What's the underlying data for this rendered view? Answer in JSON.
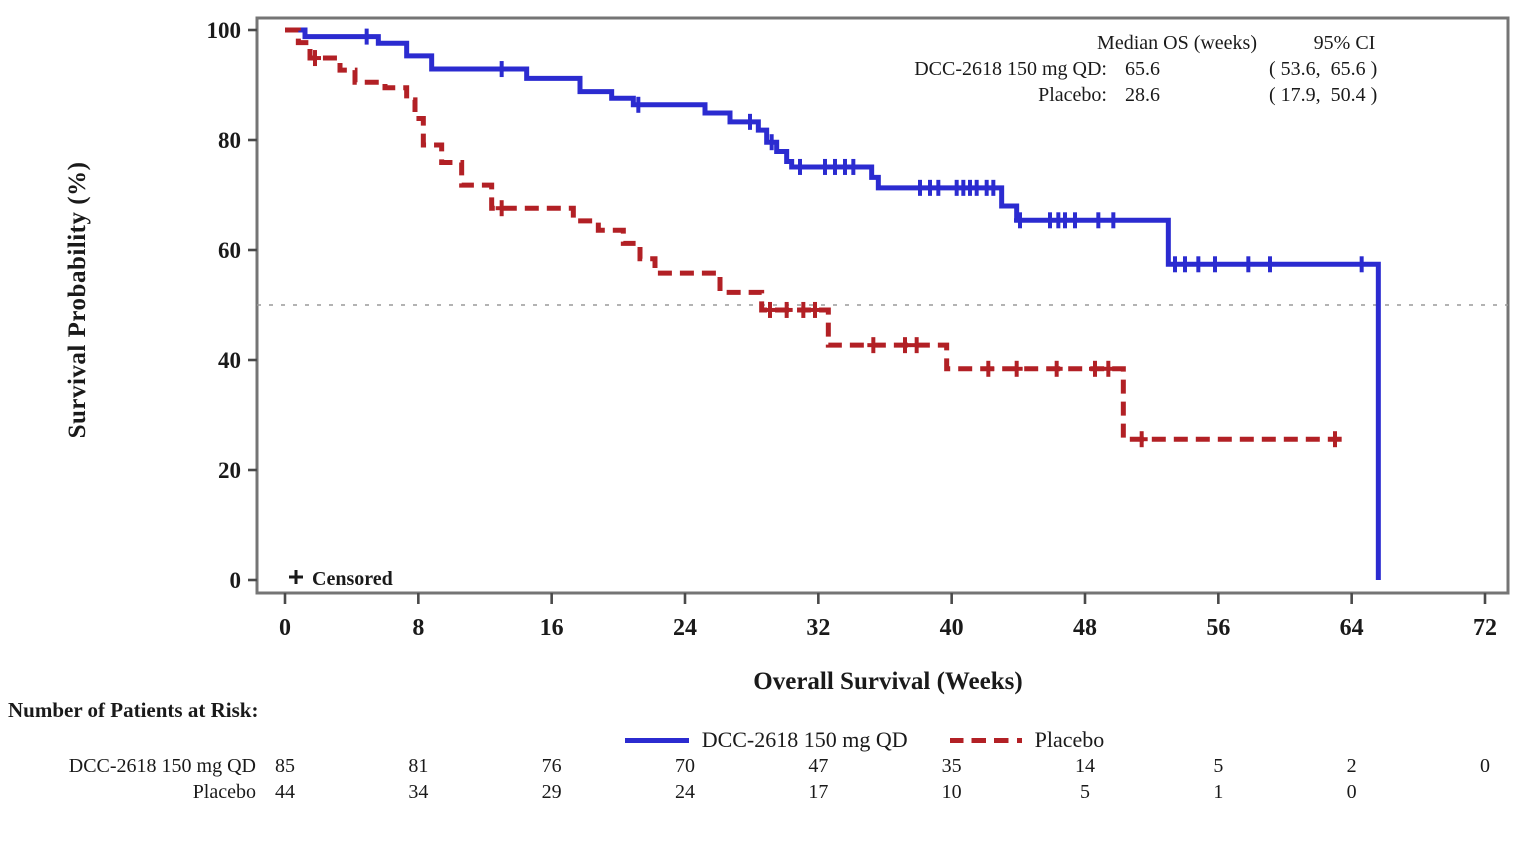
{
  "figure": {
    "y_axis_title": "Survival Probability (%)",
    "x_axis_title": "Overall Survival (Weeks)",
    "censored_note": "Censored",
    "colors": {
      "treatment": "#2b2bd0",
      "placebo": "#b22025",
      "frame": "#757575",
      "tick": "#4a4a4a",
      "reference_line": "#9a9a9a",
      "text": "#1a1a1a"
    },
    "annotation": {
      "header_left": "Median OS (weeks)",
      "header_right": "95% CI",
      "rows": [
        {
          "label": "DCC-2618 150 mg QD:",
          "median": "65.6",
          "ci": "( 53.6,  65.6 )"
        },
        {
          "label": "Placebo:",
          "median": "28.6",
          "ci": "( 17.9,  50.4 )"
        }
      ]
    },
    "legend": [
      {
        "name": "DCC-2618 150 mg QD",
        "style": "solid",
        "color": "#2b2bd0"
      },
      {
        "name": "Placebo",
        "style": "dashed",
        "color": "#b22025"
      }
    ],
    "risk_table": {
      "title": "Number of Patients at Risk:",
      "rows": [
        {
          "label": "DCC-2618 150 mg QD",
          "counts": [
            "85",
            "81",
            "76",
            "70",
            "47",
            "35",
            "14",
            "5",
            "2",
            "0"
          ]
        },
        {
          "label": "Placebo",
          "counts": [
            "44",
            "34",
            "29",
            "24",
            "17",
            "10",
            "5",
            "1",
            "0",
            ""
          ]
        }
      ]
    }
  },
  "chart_data": {
    "type": "line",
    "subtype": "kaplan-meier-step",
    "title": "",
    "xlabel": "Overall Survival (Weeks)",
    "ylabel": "Survival Probability (%)",
    "xlim": [
      0,
      72
    ],
    "ylim": [
      0,
      100
    ],
    "x_ticks": [
      0,
      8,
      16,
      24,
      32,
      40,
      48,
      56,
      64,
      72
    ],
    "y_ticks": [
      0,
      20,
      40,
      60,
      80,
      100
    ],
    "grid": false,
    "reference_line_y": 50,
    "legend_position": "bottom",
    "series": [
      {
        "name": "DCC-2618 150 mg QD",
        "color": "#2b2bd0",
        "dash": false,
        "median_weeks": 65.6,
        "ci95": [
          53.6,
          65.6
        ],
        "end_week": 65.6,
        "steps": [
          [
            0,
            100
          ],
          [
            1.2,
            98.8
          ],
          [
            5.6,
            97.6
          ],
          [
            7.3,
            95.3
          ],
          [
            8.8,
            92.9
          ],
          [
            14.5,
            91.2
          ],
          [
            17.7,
            88.8
          ],
          [
            19.6,
            87.6
          ],
          [
            20.9,
            86.4
          ],
          [
            25.2,
            84.9
          ],
          [
            26.7,
            83.3
          ],
          [
            28.4,
            81.8
          ],
          [
            28.9,
            79.6
          ],
          [
            29.5,
            77.9
          ],
          [
            30.1,
            76.1
          ],
          [
            30.4,
            75.1
          ],
          [
            35.2,
            73.2
          ],
          [
            35.6,
            71.3
          ],
          [
            43.0,
            68.0
          ],
          [
            43.9,
            65.4
          ],
          [
            53.0,
            57.4
          ],
          [
            65.6,
            0
          ]
        ],
        "censors": [
          [
            4.9,
            98.8
          ],
          [
            13.0,
            92.9
          ],
          [
            21.2,
            86.4
          ],
          [
            27.9,
            83.3
          ],
          [
            29.2,
            79.6
          ],
          [
            30.9,
            75.1
          ],
          [
            32.4,
            75.1
          ],
          [
            33.0,
            75.1
          ],
          [
            33.6,
            75.1
          ],
          [
            34.1,
            75.1
          ],
          [
            38.1,
            71.3
          ],
          [
            38.7,
            71.3
          ],
          [
            39.2,
            71.3
          ],
          [
            40.3,
            71.3
          ],
          [
            40.7,
            71.3
          ],
          [
            41.1,
            71.3
          ],
          [
            41.5,
            71.3
          ],
          [
            42.1,
            71.3
          ],
          [
            42.5,
            71.3
          ],
          [
            44.1,
            65.4
          ],
          [
            45.9,
            65.4
          ],
          [
            46.4,
            65.4
          ],
          [
            46.8,
            65.4
          ],
          [
            47.4,
            65.4
          ],
          [
            48.8,
            65.4
          ],
          [
            49.7,
            65.4
          ],
          [
            53.4,
            57.4
          ],
          [
            54.0,
            57.4
          ],
          [
            54.8,
            57.4
          ],
          [
            55.8,
            57.4
          ],
          [
            57.8,
            57.4
          ],
          [
            59.1,
            57.4
          ],
          [
            64.6,
            57.4
          ]
        ]
      },
      {
        "name": "Placebo",
        "color": "#b22025",
        "dash": true,
        "median_weeks": 28.6,
        "ci95": [
          17.9,
          50.4
        ],
        "end_week": 63.4,
        "steps": [
          [
            0,
            100
          ],
          [
            0.8,
            97.7
          ],
          [
            1.5,
            94.9
          ],
          [
            3.3,
            92.7
          ],
          [
            4.2,
            90.5
          ],
          [
            6.0,
            89.5
          ],
          [
            7.3,
            87.3
          ],
          [
            7.8,
            83.9
          ],
          [
            8.3,
            79.1
          ],
          [
            9.4,
            75.9
          ],
          [
            10.6,
            71.8
          ],
          [
            12.4,
            67.6
          ],
          [
            17.3,
            65.3
          ],
          [
            18.8,
            63.6
          ],
          [
            20.3,
            61.2
          ],
          [
            21.3,
            58.4
          ],
          [
            22.2,
            55.8
          ],
          [
            26.1,
            52.3
          ],
          [
            28.6,
            49.1
          ],
          [
            32.6,
            42.7
          ],
          [
            39.7,
            38.4
          ],
          [
            50.3,
            25.6
          ]
        ],
        "censors": [
          [
            1.8,
            94.9
          ],
          [
            13.0,
            67.6
          ],
          [
            29.1,
            49.1
          ],
          [
            30.1,
            49.1
          ],
          [
            31.1,
            49.1
          ],
          [
            31.8,
            49.1
          ],
          [
            35.3,
            42.7
          ],
          [
            37.2,
            42.7
          ],
          [
            37.9,
            42.7
          ],
          [
            42.2,
            38.4
          ],
          [
            43.9,
            38.4
          ],
          [
            46.3,
            38.4
          ],
          [
            48.6,
            38.4
          ],
          [
            49.4,
            38.4
          ],
          [
            51.4,
            25.6
          ],
          [
            63.0,
            25.6
          ]
        ]
      }
    ]
  }
}
